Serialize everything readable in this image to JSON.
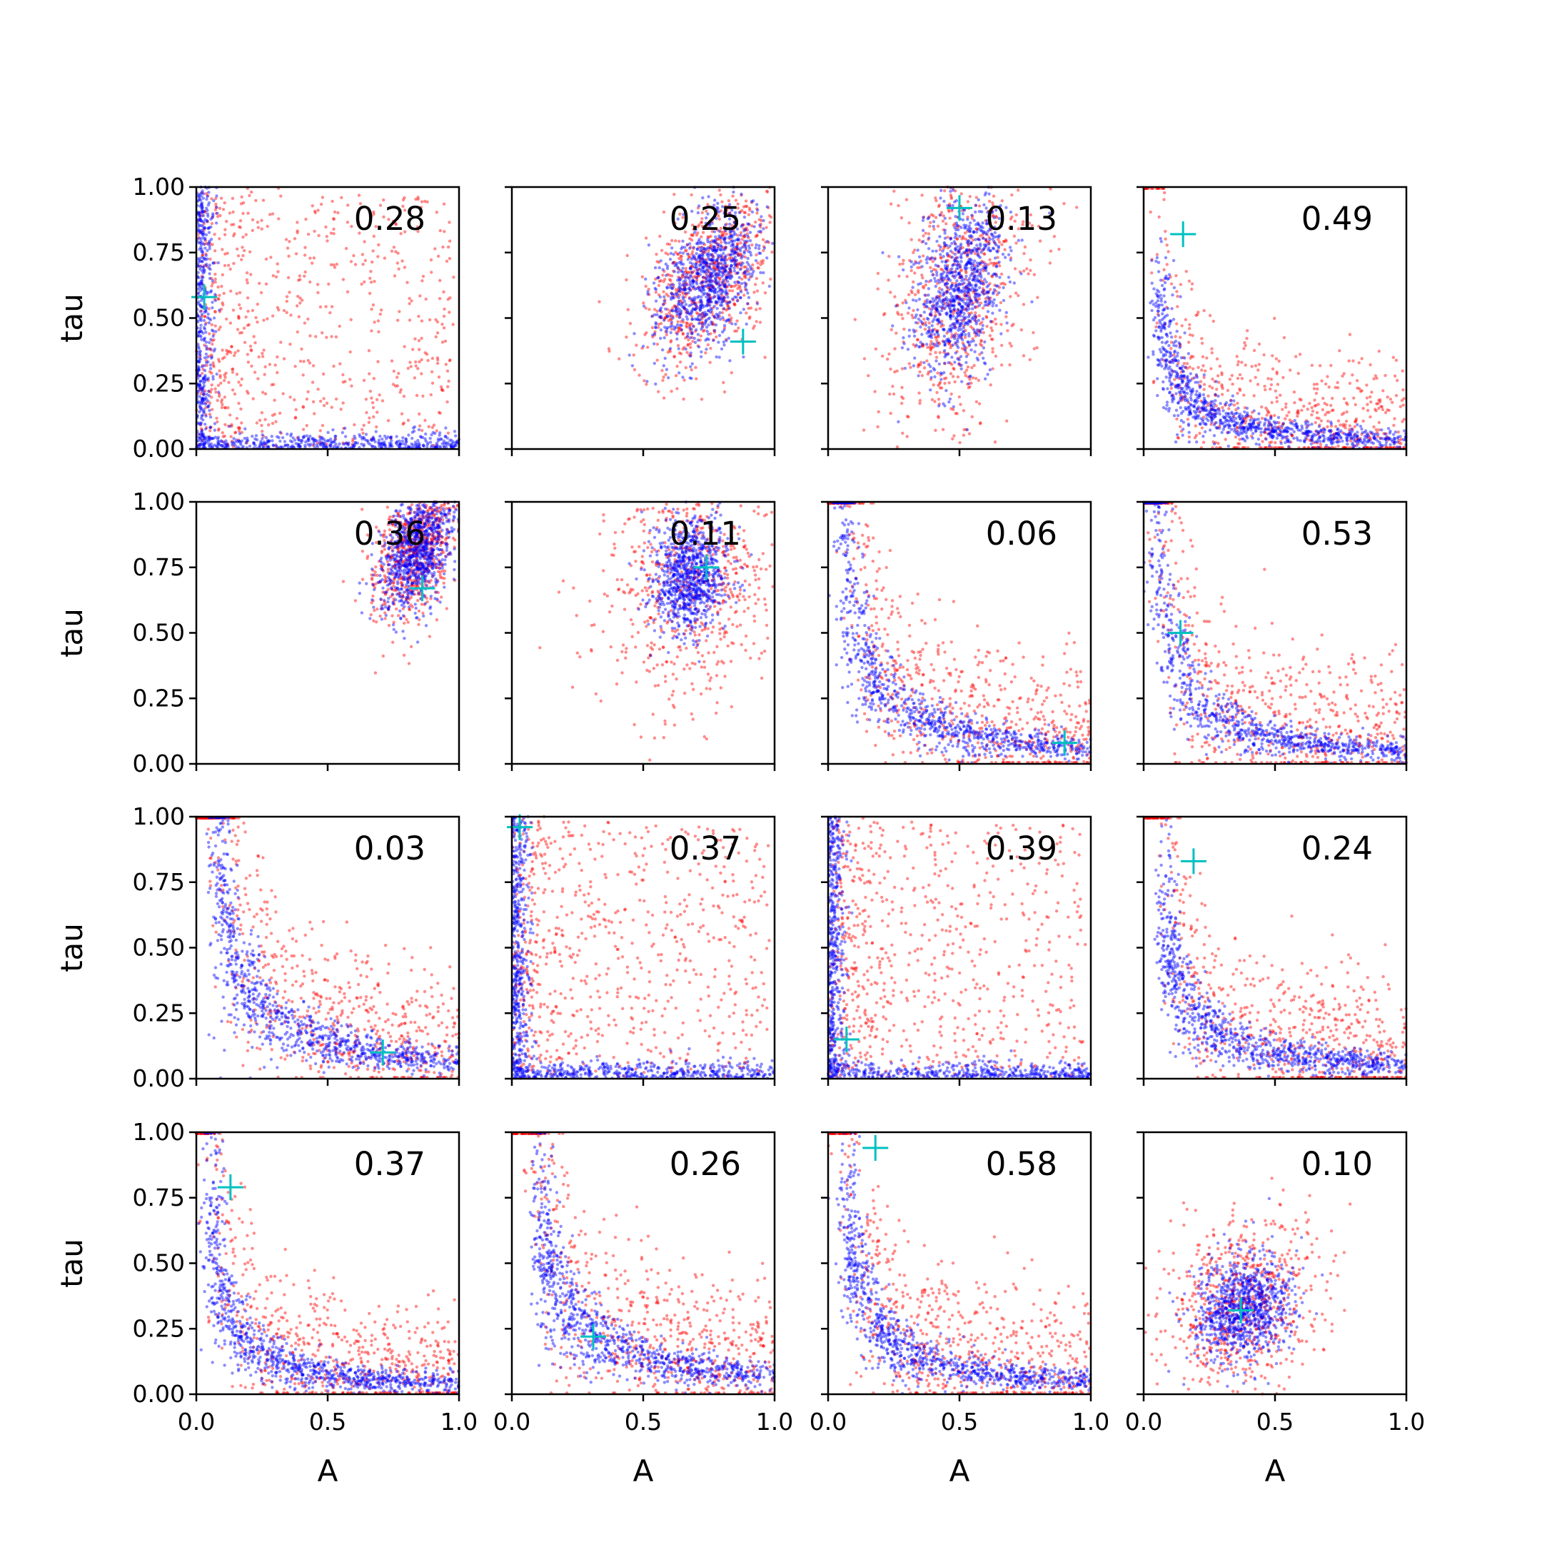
{
  "colors": {
    "posterior": "#ff0000",
    "prior": "#0000ff",
    "truth_marker": "#00c0c0",
    "frame": "#000000"
  },
  "chart_data": {
    "type": "scatter",
    "layout": "4x4 grid of scatter panels sharing axes",
    "xlabel": "A",
    "ylabel": "tau",
    "xlim": [
      0,
      1
    ],
    "ylim": [
      0,
      1
    ],
    "x_ticks": [
      "0.0",
      "0.5",
      "1.0"
    ],
    "y_ticks": [
      "0.00",
      "0.25",
      "0.50",
      "0.75",
      "1.00"
    ],
    "grid": false,
    "legend": "none",
    "series_colors": {
      "red": "#ff0000",
      "blue": "#0000ff"
    },
    "marker": "cyan plus (+) at estimated true (A, tau) in each panel",
    "panels": [
      {
        "value": "0.28",
        "marker": [
          0.03,
          0.58
        ],
        "pattern": "L_edge",
        "row": 0,
        "col": 0
      },
      {
        "value": "0.25",
        "marker": [
          0.88,
          0.41
        ],
        "pattern": "cluster",
        "cx": 0.75,
        "cy": 0.65,
        "sx": 0.08,
        "sy": 0.15,
        "rot": -0.5,
        "red_spread": 1.3,
        "row": 0,
        "col": 1
      },
      {
        "value": "0.13",
        "marker": [
          0.5,
          0.92
        ],
        "pattern": "cluster",
        "cx": 0.5,
        "cy": 0.62,
        "sx": 0.08,
        "sy": 0.17,
        "rot": -0.2,
        "red_spread": 1.6,
        "row": 0,
        "col": 2
      },
      {
        "value": "0.49",
        "marker": [
          0.15,
          0.82
        ],
        "pattern": "hyperbola",
        "xmin": 0.06,
        "k": 0.035,
        "row": 0,
        "col": 3
      },
      {
        "value": "0.36",
        "marker": [
          0.86,
          0.67
        ],
        "pattern": "cluster",
        "cx": 0.84,
        "cy": 0.82,
        "sx": 0.06,
        "sy": 0.12,
        "rot": -0.3,
        "red_spread": 1.2,
        "row": 1,
        "col": 0
      },
      {
        "value": "0.11",
        "marker": [
          0.74,
          0.75
        ],
        "pattern": "cluster",
        "cx": 0.68,
        "cy": 0.72,
        "sx": 0.07,
        "sy": 0.11,
        "rot": -0.1,
        "red_spread": 2.4,
        "row": 1,
        "col": 1
      },
      {
        "value": "0.06",
        "marker": [
          0.9,
          0.08
        ],
        "pattern": "hyperbola",
        "xmin": 0.05,
        "k": 0.06,
        "row": 1,
        "col": 2
      },
      {
        "value": "0.53",
        "marker": [
          0.14,
          0.5
        ],
        "pattern": "hyperbola",
        "xmin": 0.02,
        "k": 0.05,
        "row": 1,
        "col": 3
      },
      {
        "value": "0.03",
        "marker": [
          0.71,
          0.1
        ],
        "pattern": "hyperbola",
        "xmin": 0.08,
        "k": 0.07,
        "row": 2,
        "col": 0
      },
      {
        "value": "0.37",
        "marker": [
          0.03,
          0.96
        ],
        "pattern": "L_edge",
        "row": 2,
        "col": 1
      },
      {
        "value": "0.39",
        "marker": [
          0.07,
          0.15
        ],
        "pattern": "L_edge",
        "row": 2,
        "col": 2
      },
      {
        "value": "0.24",
        "marker": [
          0.19,
          0.83
        ],
        "pattern": "hyperbola",
        "xmin": 0.08,
        "k": 0.05,
        "row": 2,
        "col": 3
      },
      {
        "value": "0.37",
        "marker": [
          0.13,
          0.79
        ],
        "pattern": "hyperbola",
        "xmin": 0.05,
        "k": 0.04,
        "row": 3,
        "col": 0
      },
      {
        "value": "0.26",
        "marker": [
          0.31,
          0.22
        ],
        "pattern": "hyperbola",
        "xmin": 0.1,
        "k": 0.07,
        "row": 3,
        "col": 1
      },
      {
        "value": "0.58",
        "marker": [
          0.18,
          0.94
        ],
        "pattern": "hyperbola",
        "xmin": 0.07,
        "k": 0.05,
        "row": 3,
        "col": 2
      },
      {
        "value": "0.10",
        "marker": [
          0.37,
          0.32
        ],
        "pattern": "cluster",
        "cx": 0.38,
        "cy": 0.33,
        "sx": 0.09,
        "sy": 0.11,
        "rot": -0.6,
        "red_spread": 1.6,
        "row": 3,
        "col": 3
      }
    ]
  }
}
